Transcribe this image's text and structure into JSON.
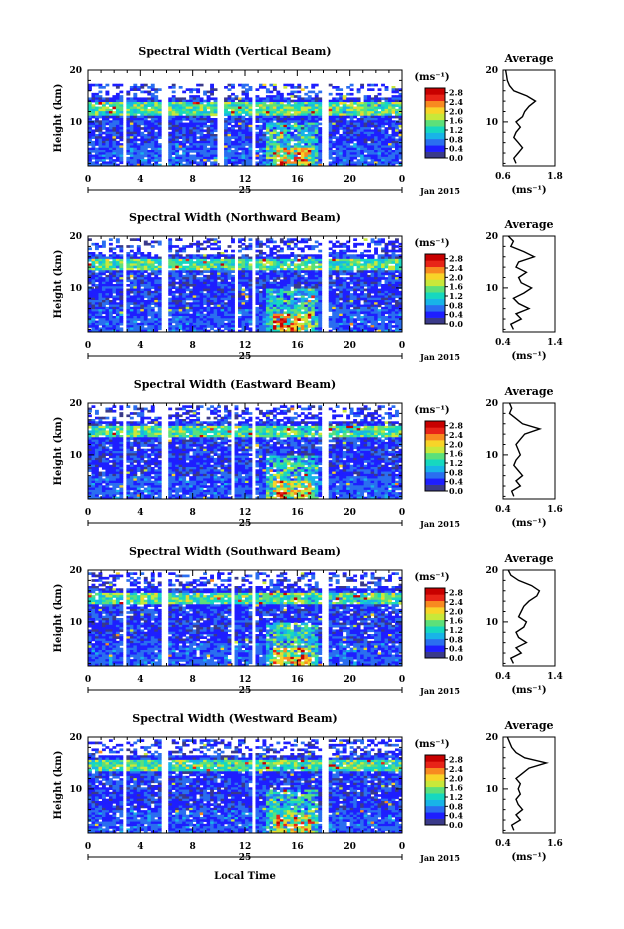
{
  "figure": {
    "xlabel": "Local Time",
    "ylabel": "Height (km)",
    "day_label": "25",
    "month_label": "Jan 2015",
    "avg_title": "Average",
    "avg_unit": "(ms⁻¹)",
    "colorbar_unit": "(ms⁻¹)",
    "colorbar_ticks": [
      "0.0",
      "0.4",
      "0.8",
      "1.2",
      "1.6",
      "2.0",
      "2.4",
      "2.8"
    ],
    "colorbar_colors": [
      "#3a3a8a",
      "#1e1eff",
      "#2a6ef0",
      "#18b4e8",
      "#16d8c0",
      "#5ce07a",
      "#c8e83a",
      "#f8d428",
      "#f88a20",
      "#e82418",
      "#c80000"
    ],
    "x_ticks": [
      "0",
      "4",
      "8",
      "12",
      "16",
      "20",
      "0"
    ],
    "y_ticks": [
      "10",
      "20"
    ]
  },
  "chart_data": [
    {
      "type": "heatmap",
      "title": "Spectral Width (Vertical Beam)",
      "x_range": [
        0,
        24
      ],
      "y_range": [
        1.5,
        20
      ],
      "z_range": [
        0,
        3.0
      ],
      "data_gaps_hours": [
        [
          2.6,
          3.0
        ],
        [
          5.7,
          6.0
        ],
        [
          10.0,
          10.3
        ],
        [
          12.5,
          12.9
        ],
        [
          17.9,
          18.3
        ]
      ],
      "data_top_km": 17.5,
      "average_profile": {
        "xlim": [
          0.6,
          1.8
        ],
        "xticks": [
          "0.6",
          "1.8"
        ],
        "height_km": [
          2,
          3,
          4,
          5,
          6,
          7,
          8,
          9,
          10,
          11,
          12,
          13,
          14,
          15,
          16,
          17,
          18,
          19,
          20
        ],
        "value": [
          0.9,
          0.85,
          0.95,
          1.05,
          0.95,
          0.85,
          0.9,
          1.0,
          0.9,
          1.05,
          1.1,
          1.2,
          1.35,
          1.15,
          0.85,
          0.75,
          0.7,
          0.68,
          0.66
        ]
      }
    },
    {
      "type": "heatmap",
      "title": "Spectral Width (Northward Beam)",
      "x_range": [
        0,
        24
      ],
      "y_range": [
        1.5,
        20
      ],
      "z_range": [
        0,
        3.0
      ],
      "data_gaps_hours": [
        [
          2.6,
          3.0
        ],
        [
          5.7,
          6.0
        ],
        [
          11.2,
          11.5
        ],
        [
          12.5,
          12.9
        ],
        [
          18.0,
          18.4
        ]
      ],
      "data_top_km": 19.5,
      "average_profile": {
        "xlim": [
          0.4,
          1.4
        ],
        "xticks": [
          "0.4",
          "1.4"
        ],
        "height_km": [
          2,
          3,
          4,
          5,
          6,
          7,
          8,
          9,
          10,
          11,
          12,
          13,
          14,
          15,
          16,
          17,
          18,
          19,
          20
        ],
        "value": [
          0.6,
          0.55,
          0.75,
          0.65,
          0.9,
          0.7,
          0.6,
          0.8,
          0.95,
          0.75,
          0.7,
          0.85,
          0.65,
          0.7,
          1.0,
          0.8,
          0.55,
          0.6,
          0.5
        ]
      }
    },
    {
      "type": "heatmap",
      "title": "Spectral Width (Eastward Beam)",
      "x_range": [
        0,
        24
      ],
      "y_range": [
        1.5,
        20
      ],
      "z_range": [
        0,
        3.0
      ],
      "data_gaps_hours": [
        [
          2.6,
          3.0
        ],
        [
          5.7,
          6.0
        ],
        [
          10.9,
          11.2
        ],
        [
          12.5,
          12.9
        ],
        [
          17.9,
          18.3
        ]
      ],
      "data_top_km": 19.5,
      "average_profile": {
        "xlim": [
          0.4,
          1.6
        ],
        "xticks": [
          "0.4",
          "1.6"
        ],
        "height_km": [
          2,
          3,
          4,
          5,
          6,
          7,
          8,
          9,
          10,
          11,
          12,
          13,
          14,
          15,
          16,
          17,
          18,
          19,
          20
        ],
        "value": [
          0.65,
          0.6,
          0.8,
          0.7,
          0.85,
          0.75,
          0.65,
          0.7,
          0.8,
          0.75,
          0.7,
          0.8,
          0.9,
          1.25,
          0.85,
          0.7,
          0.55,
          0.6,
          0.55
        ]
      }
    },
    {
      "type": "heatmap",
      "title": "Spectral Width (Southward Beam)",
      "x_range": [
        0,
        24
      ],
      "y_range": [
        1.5,
        20
      ],
      "z_range": [
        0,
        3.0
      ],
      "data_gaps_hours": [
        [
          2.6,
          3.0
        ],
        [
          5.7,
          6.0
        ],
        [
          10.9,
          11.2
        ],
        [
          12.5,
          12.9
        ],
        [
          17.9,
          18.3
        ]
      ],
      "data_top_km": 19.5,
      "average_profile": {
        "xlim": [
          0.4,
          1.4
        ],
        "xticks": [
          "0.4",
          "1.4"
        ],
        "height_km": [
          2,
          3,
          4,
          5,
          6,
          7,
          8,
          9,
          10,
          11,
          12,
          13,
          14,
          15,
          16,
          17,
          18,
          19,
          20
        ],
        "value": [
          0.6,
          0.55,
          0.75,
          0.65,
          0.85,
          0.7,
          0.65,
          0.8,
          0.85,
          0.7,
          0.75,
          0.8,
          0.9,
          1.05,
          1.1,
          0.95,
          0.7,
          0.55,
          0.5
        ]
      }
    },
    {
      "type": "heatmap",
      "title": "Spectral Width (Westward Beam)",
      "x_range": [
        0,
        24
      ],
      "y_range": [
        1.5,
        20
      ],
      "z_range": [
        0,
        3.0
      ],
      "data_gaps_hours": [
        [
          2.6,
          3.0
        ],
        [
          5.7,
          6.0
        ],
        [
          12.5,
          12.9
        ],
        [
          17.9,
          18.3
        ]
      ],
      "data_top_km": 19.5,
      "average_profile": {
        "xlim": [
          0.4,
          1.6
        ],
        "xticks": [
          "0.4",
          "1.6"
        ],
        "height_km": [
          2,
          3,
          4,
          5,
          6,
          7,
          8,
          9,
          10,
          11,
          12,
          13,
          14,
          15,
          16,
          17,
          18,
          19,
          20
        ],
        "value": [
          0.65,
          0.6,
          0.8,
          0.7,
          0.85,
          0.75,
          0.7,
          0.8,
          0.75,
          0.8,
          0.7,
          0.85,
          1.0,
          1.4,
          0.9,
          0.7,
          0.6,
          0.55,
          0.5
        ]
      }
    }
  ]
}
